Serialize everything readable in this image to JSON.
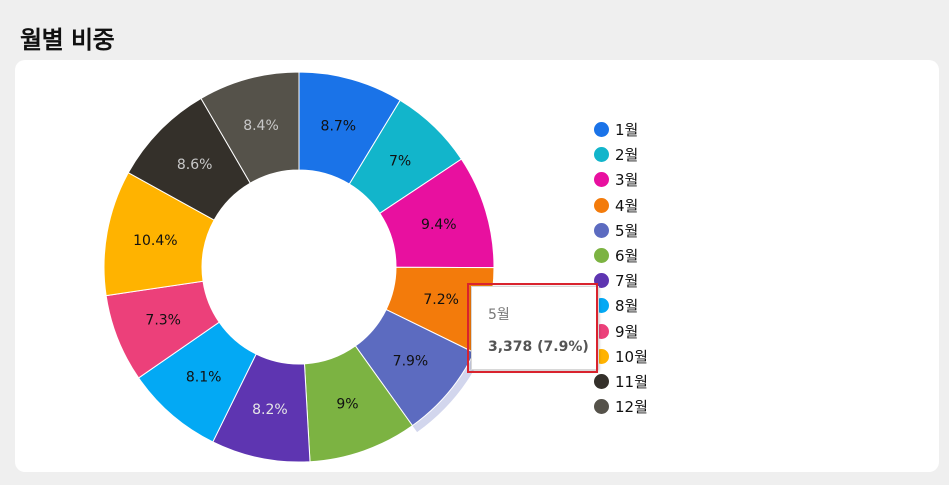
{
  "title": "월별 비중",
  "chart_data": {
    "type": "pie",
    "variant": "donut",
    "categories": [
      "1월",
      "2월",
      "3월",
      "4월",
      "5월",
      "6월",
      "7월",
      "8월",
      "9월",
      "10월",
      "11월",
      "12월"
    ],
    "values": [
      8.7,
      7.0,
      9.4,
      7.2,
      7.9,
      9.0,
      8.2,
      8.1,
      7.3,
      10.4,
      8.6,
      8.4
    ],
    "slice_labels": [
      "8.7%",
      "7%",
      "9.4%",
      "7.2%",
      "7.9%",
      "9%",
      "8.2%",
      "8.1%",
      "7.3%",
      "10.4%",
      "8.6%",
      "8.4%"
    ],
    "colors": [
      "#1a73e8",
      "#12b5cb",
      "#e8109f",
      "#f37b0b",
      "#5c6bc0",
      "#7cb342",
      "#5e35b1",
      "#03a9f4",
      "#ec407a",
      "#ffb300",
      "#34302a",
      "#55524a"
    ],
    "label_colors": [
      "#111111",
      "#111111",
      "#111111",
      "#111111",
      "#111111",
      "#111111",
      "#e6e6e6",
      "#111111",
      "#111111",
      "#111111",
      "#c8c8c8",
      "#c8c8c8"
    ],
    "legend_position": "right",
    "highlighted_index": 4
  },
  "tooltip": {
    "label": "5월",
    "value": "3,378 (7.9%)"
  }
}
